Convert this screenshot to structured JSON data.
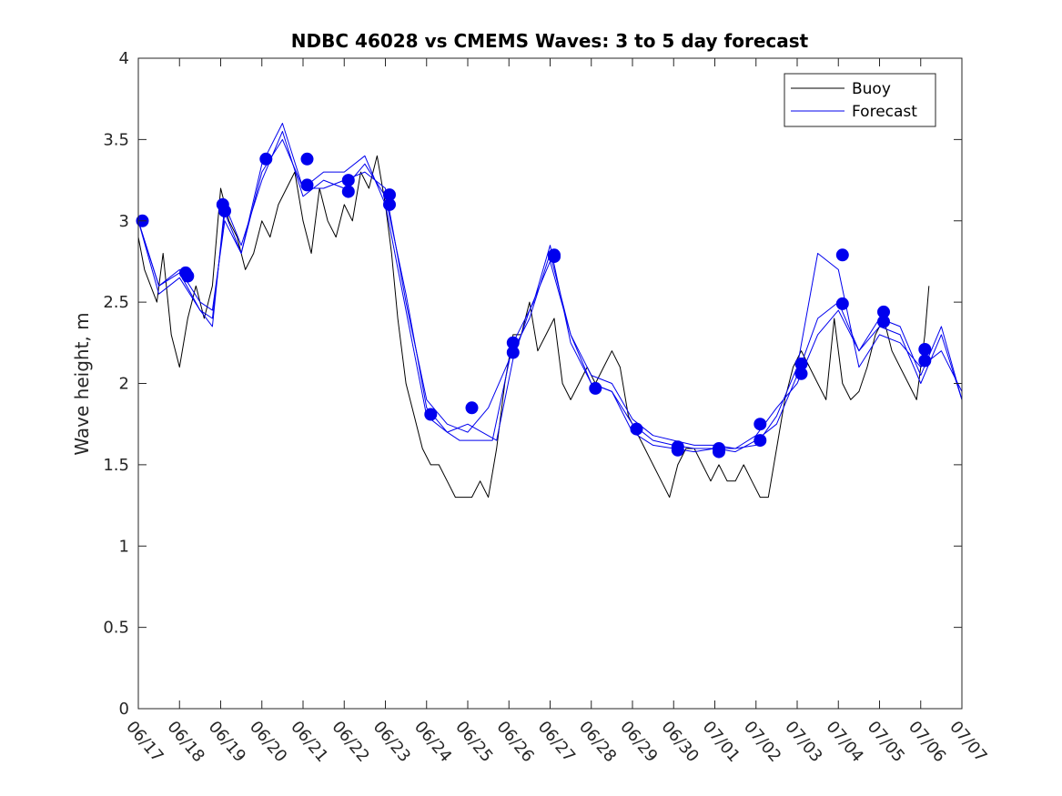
{
  "chart_data": {
    "type": "line",
    "title": "NDBC 46028 vs CMEMS Waves: 3 to 5 day forecast",
    "xlabel": "",
    "ylabel": "Wave height, m",
    "xlim": [
      0,
      20
    ],
    "ylim": [
      0,
      4
    ],
    "yticks": [
      0,
      0.5,
      1,
      1.5,
      2,
      2.5,
      3,
      3.5,
      4
    ],
    "ytick_labels": [
      "0",
      "0.5",
      "1",
      "1.5",
      "2",
      "2.5",
      "3",
      "3.5",
      "4"
    ],
    "xticks": [
      0,
      1,
      2,
      3,
      4,
      5,
      6,
      7,
      8,
      9,
      10,
      11,
      12,
      13,
      14,
      15,
      16,
      17,
      18,
      19,
      20
    ],
    "xtick_labels": [
      "06/17",
      "06/18",
      "06/19",
      "06/20",
      "06/21",
      "06/22",
      "06/23",
      "06/24",
      "06/25",
      "06/26",
      "06/27",
      "06/28",
      "06/29",
      "06/30",
      "07/01",
      "07/02",
      "07/03",
      "07/04",
      "07/05",
      "07/06",
      "07/07"
    ],
    "legend": {
      "position": "top-right",
      "entries": [
        {
          "label": "Buoy",
          "color": "#000000"
        },
        {
          "label": "Forecast",
          "color": "#0000ee"
        }
      ]
    },
    "grid": false,
    "series": [
      {
        "name": "Buoy",
        "color": "#000000",
        "x": [
          0,
          0.15,
          0.3,
          0.45,
          0.6,
          0.8,
          1.0,
          1.2,
          1.4,
          1.6,
          1.8,
          2.0,
          2.2,
          2.4,
          2.6,
          2.8,
          3.0,
          3.2,
          3.4,
          3.6,
          3.8,
          4.0,
          4.2,
          4.4,
          4.6,
          4.8,
          5.0,
          5.2,
          5.4,
          5.6,
          5.8,
          6.0,
          6.15,
          6.3,
          6.5,
          6.7,
          6.9,
          7.1,
          7.3,
          7.5,
          7.7,
          7.9,
          8.1,
          8.3,
          8.5,
          8.7,
          8.9,
          9.1,
          9.3,
          9.5,
          9.7,
          9.9,
          10.1,
          10.3,
          10.5,
          10.7,
          10.9,
          11.1,
          11.3,
          11.5,
          11.7,
          11.9,
          12.1,
          12.3,
          12.5,
          12.7,
          12.9,
          13.1,
          13.3,
          13.5,
          13.7,
          13.9,
          14.1,
          14.3,
          14.5,
          14.7,
          14.9,
          15.1,
          15.3,
          15.5,
          15.7,
          15.9,
          16.1,
          16.3,
          16.5,
          16.7,
          16.9,
          17.1,
          17.3,
          17.5,
          17.7,
          17.9,
          18.1,
          18.3,
          18.5,
          18.7,
          18.9,
          19.1,
          19.2
        ],
        "y": [
          2.9,
          2.7,
          2.6,
          2.5,
          2.8,
          2.3,
          2.1,
          2.4,
          2.6,
          2.4,
          2.6,
          3.2,
          3.0,
          2.9,
          2.7,
          2.8,
          3.0,
          2.9,
          3.1,
          3.2,
          3.3,
          3.0,
          2.8,
          3.2,
          3.0,
          2.9,
          3.1,
          3.0,
          3.3,
          3.2,
          3.4,
          3.1,
          2.8,
          2.4,
          2.0,
          1.8,
          1.6,
          1.5,
          1.5,
          1.4,
          1.3,
          1.3,
          1.3,
          1.4,
          1.3,
          1.6,
          2.0,
          2.3,
          2.3,
          2.5,
          2.2,
          2.3,
          2.4,
          2.0,
          1.9,
          2.0,
          2.1,
          2.0,
          2.1,
          2.2,
          2.1,
          1.8,
          1.7,
          1.6,
          1.5,
          1.4,
          1.3,
          1.5,
          1.6,
          1.6,
          1.5,
          1.4,
          1.5,
          1.4,
          1.4,
          1.5,
          1.4,
          1.3,
          1.3,
          1.6,
          1.9,
          2.1,
          2.2,
          2.1,
          2.0,
          1.9,
          2.4,
          2.0,
          1.9,
          1.95,
          2.1,
          2.3,
          2.4,
          2.2,
          2.1,
          2.0,
          1.9,
          2.3,
          2.6
        ]
      },
      {
        "name": "Forecast",
        "color": "#0000ee",
        "x": [
          0,
          0.5,
          1.0,
          1.5,
          1.8,
          2.1,
          2.5,
          3.0,
          3.5,
          4.0,
          4.5,
          5.0,
          5.5,
          6.0,
          6.5,
          7.0,
          7.5,
          8.0,
          8.5,
          9.1,
          9.5,
          10.0,
          10.5,
          11.0,
          11.5,
          12.0,
          12.5,
          13.0,
          13.5,
          14.0,
          14.5,
          15.0,
          15.5,
          16.0,
          16.5,
          17.0,
          17.5,
          18.0,
          18.5,
          19.0,
          19.5,
          20.0
        ],
        "y": [
          3.0,
          2.6,
          2.68,
          2.45,
          2.4,
          3.05,
          2.8,
          3.3,
          3.5,
          3.2,
          3.2,
          3.25,
          3.3,
          3.2,
          2.5,
          1.9,
          1.75,
          1.7,
          1.85,
          2.2,
          2.4,
          2.8,
          2.3,
          2.0,
          1.95,
          1.75,
          1.65,
          1.62,
          1.6,
          1.6,
          1.58,
          1.65,
          1.75,
          2.05,
          2.4,
          2.5,
          2.2,
          2.35,
          2.3,
          2.0,
          2.3,
          1.9
        ]
      },
      {
        "name": "Forecast",
        "color": "#0000ee",
        "x": [
          0,
          0.5,
          1.0,
          1.5,
          1.8,
          2.1,
          2.5,
          3.0,
          3.5,
          4.0,
          4.5,
          5.0,
          5.5,
          6.0,
          6.5,
          7.0,
          7.5,
          7.8,
          8.6,
          9.1,
          9.6,
          10.0,
          10.5,
          11.0,
          11.5,
          12.0,
          12.5,
          13.0,
          13.5,
          14.0,
          14.5,
          15.0,
          15.5,
          16.0,
          16.5,
          17.0,
          17.5,
          18.0,
          18.5,
          19.0,
          19.5,
          20.0
        ],
        "y": [
          3.0,
          2.55,
          2.65,
          2.45,
          2.35,
          3.1,
          2.85,
          3.25,
          3.55,
          3.15,
          3.25,
          3.2,
          3.35,
          3.15,
          2.55,
          1.85,
          1.7,
          1.65,
          1.65,
          2.25,
          2.5,
          2.85,
          2.25,
          2.0,
          1.95,
          1.7,
          1.62,
          1.6,
          1.58,
          1.6,
          1.6,
          1.62,
          1.8,
          2.1,
          2.8,
          2.7,
          2.1,
          2.3,
          2.25,
          2.1,
          2.2,
          1.95
        ]
      },
      {
        "name": "Forecast",
        "color": "#0000ee",
        "x": [
          0,
          0.5,
          1.0,
          1.5,
          1.8,
          2.1,
          2.5,
          3.0,
          3.5,
          4.0,
          4.5,
          5.0,
          5.5,
          6.0,
          6.5,
          7.0,
          7.5,
          8.0,
          8.7,
          9.1,
          9.5,
          10.0,
          10.5,
          11.0,
          11.5,
          12.0,
          12.5,
          13.0,
          13.5,
          14.0,
          14.5,
          15.0,
          15.5,
          16.0,
          16.5,
          17.0,
          17.5,
          18.0,
          18.5,
          19.0,
          19.5,
          20.0
        ],
        "y": [
          3.0,
          2.6,
          2.7,
          2.5,
          2.45,
          3.0,
          2.8,
          3.35,
          3.6,
          3.2,
          3.3,
          3.3,
          3.4,
          3.1,
          2.45,
          1.8,
          1.7,
          1.75,
          1.65,
          2.15,
          2.45,
          2.75,
          2.3,
          2.05,
          2.0,
          1.78,
          1.68,
          1.65,
          1.62,
          1.62,
          1.6,
          1.68,
          1.85,
          2.0,
          2.3,
          2.45,
          2.2,
          2.4,
          2.35,
          2.05,
          2.35,
          1.9
        ]
      }
    ],
    "markers": {
      "name": "Forecast",
      "color": "#0000ee",
      "x": [
        0.1,
        1.15,
        1.2,
        2.05,
        2.1,
        3.1,
        4.1,
        4.1,
        5.1,
        5.1,
        6.1,
        6.1,
        7.1,
        8.1,
        9.1,
        9.1,
        10.1,
        10.1,
        11.1,
        12.1,
        13.1,
        13.1,
        14.1,
        14.1,
        15.1,
        15.1,
        16.1,
        16.1,
        17.1,
        17.1,
        18.1,
        18.1,
        19.1,
        19.1
      ],
      "y": [
        3.0,
        2.68,
        2.66,
        3.1,
        3.06,
        3.38,
        3.38,
        3.22,
        3.25,
        3.18,
        3.16,
        3.1,
        1.81,
        1.85,
        2.25,
        2.19,
        2.79,
        2.78,
        1.97,
        1.72,
        1.61,
        1.59,
        1.6,
        1.58,
        1.75,
        1.65,
        2.12,
        2.06,
        2.79,
        2.49,
        2.44,
        2.38,
        2.21,
        2.14
      ]
    }
  }
}
